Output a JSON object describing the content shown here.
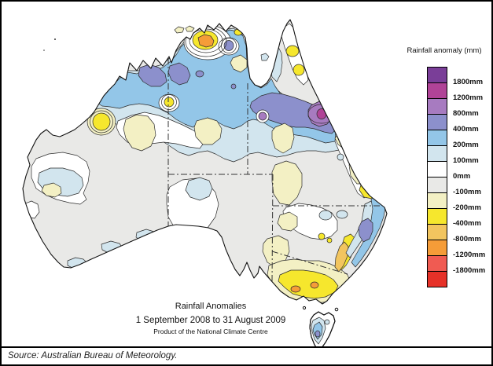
{
  "legend": {
    "title": "Rainfall anomaly (mm)",
    "colors": [
      "#7A3E98",
      "#B04397",
      "#A77BC0",
      "#8C90CC",
      "#93C6E8",
      "#D2E5EE",
      "#FFFFFF",
      "#E9E9E7",
      "#F3F0C4",
      "#F6E72D",
      "#F2C55F",
      "#F59C38",
      "#F05B52",
      "#E63128"
    ],
    "labels": [
      "1800mm",
      "1200mm",
      "800mm",
      "400mm",
      "200mm",
      "100mm",
      "0mm",
      "-100mm",
      "-200mm",
      "-400mm",
      "-800mm",
      "-1200mm",
      "-1800mm"
    ]
  },
  "caption": {
    "title": "Rainfall Anomalies",
    "period": "1 September 2008 to 31 August 2009",
    "product": "Product of the National Climate Centre"
  },
  "source": "Source: Australian Bureau of Meteorology."
}
